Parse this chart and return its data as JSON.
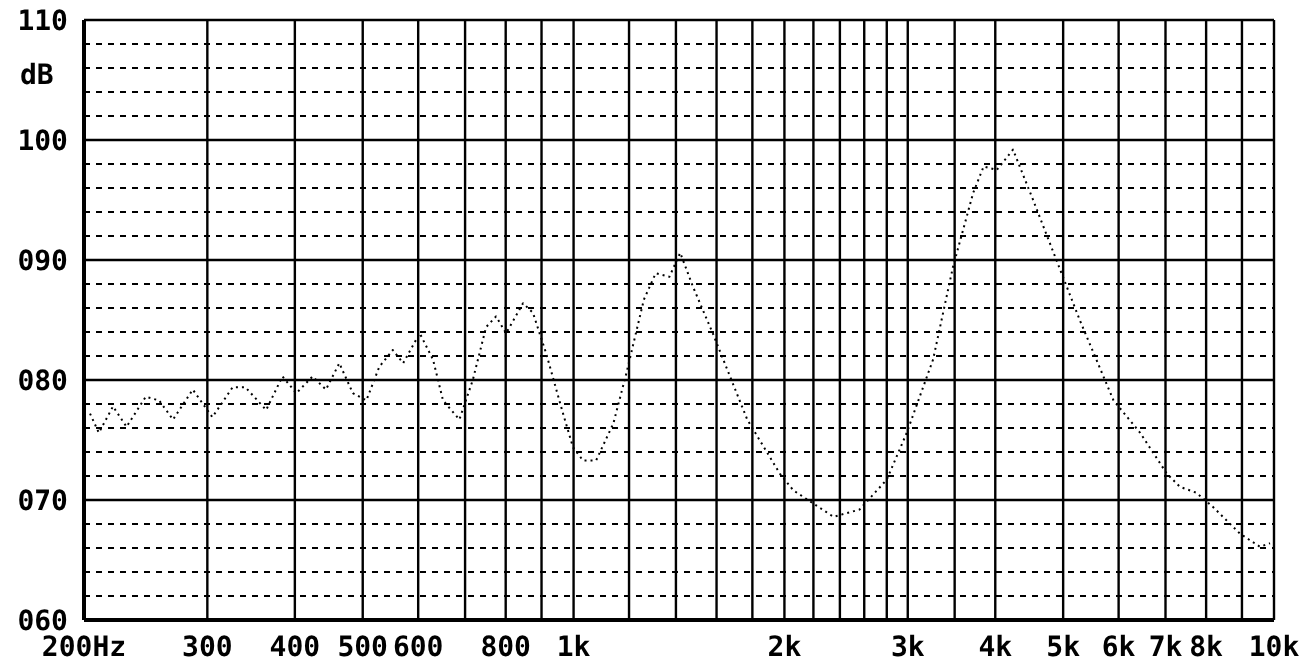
{
  "chart_data": {
    "type": "line",
    "ylabel": "dB",
    "log": "x",
    "grid": true,
    "line_style": "dotted",
    "marker": "none",
    "xlim": [
      200,
      10000
    ],
    "ylim": [
      60,
      110
    ],
    "xticks": [
      {
        "value": 200,
        "label": "200Hz"
      },
      300,
      400,
      500,
      600,
      {
        "value": 700,
        "label": null
      },
      800,
      {
        "value": 900,
        "label": null
      },
      {
        "value": 1000,
        "label": "1k"
      },
      {
        "value": 1200,
        "label": null
      },
      {
        "value": 1400,
        "label": null
      },
      {
        "value": 1600,
        "label": null
      },
      {
        "value": 1800,
        "label": null
      },
      {
        "value": 2000,
        "label": "2k"
      },
      {
        "value": 2200,
        "label": null
      },
      {
        "value": 2400,
        "label": null
      },
      {
        "value": 2600,
        "label": null
      },
      {
        "value": 2800,
        "label": null
      },
      {
        "value": 3000,
        "label": "3k"
      },
      {
        "value": 3500,
        "label": null
      },
      {
        "value": 4000,
        "label": "4k"
      },
      {
        "value": 5000,
        "label": "5k"
      },
      {
        "value": 6000,
        "label": "6k"
      },
      {
        "value": 7000,
        "label": "7k"
      },
      {
        "value": 8000,
        "label": "8k"
      },
      {
        "value": 9000,
        "label": null
      },
      {
        "value": 10000,
        "label": "10k"
      }
    ],
    "yticks": [
      {
        "value": 60,
        "label": "060"
      },
      {
        "value": 62,
        "label": null
      },
      {
        "value": 64,
        "label": null
      },
      {
        "value": 66,
        "label": null
      },
      {
        "value": 68,
        "label": null
      },
      {
        "value": 70,
        "label": "070"
      },
      {
        "value": 72,
        "label": null
      },
      {
        "value": 74,
        "label": null
      },
      {
        "value": 76,
        "label": null
      },
      {
        "value": 78,
        "label": null
      },
      {
        "value": 80,
        "label": "080"
      },
      {
        "value": 82,
        "label": null
      },
      {
        "value": 84,
        "label": null
      },
      {
        "value": 86,
        "label": null
      },
      {
        "value": 88,
        "label": null
      },
      {
        "value": 90,
        "label": "090"
      },
      {
        "value": 92,
        "label": null
      },
      {
        "value": 94,
        "label": null
      },
      {
        "value": 96,
        "label": null
      },
      {
        "value": 98,
        "label": null
      },
      100,
      {
        "value": 102,
        "label": null
      },
      {
        "value": 104,
        "label": null
      },
      {
        "value": 106,
        "label": null
      },
      {
        "value": 108,
        "label": null
      },
      110
    ],
    "x": [
      204,
      210,
      220,
      230,
      245,
      256,
      268,
      286,
      305,
      326,
      340,
      364,
      384,
      402,
      424,
      443,
      463,
      484,
      506,
      528,
      552,
      571,
      603,
      630,
      651,
      687,
      718,
      750,
      775,
      801,
      847,
      875,
      914,
      966,
      998,
      1031,
      1077,
      1140,
      1190,
      1260,
      1310,
      1370,
      1420,
      1480,
      1580,
      1770,
      1970,
      2060,
      2200,
      2350,
      2560,
      2800,
      2990,
      3260,
      3480,
      3720,
      3850,
      4020,
      4240,
      4530,
      4890,
      5280,
      5900,
      6440,
      7030,
      7340,
      7750,
      8190,
      8940,
      9550,
      9870
    ],
    "series": [
      {
        "color": "#000000",
        "values": [
          77.2,
          75.6,
          77.8,
          76.1,
          78.6,
          78.3,
          76.7,
          79.2,
          76.9,
          79.4,
          79.4,
          77.5,
          80.3,
          78.9,
          80.3,
          79.2,
          81.4,
          78.9,
          78.3,
          81.1,
          82.5,
          81.4,
          83.9,
          81.7,
          78.3,
          76.7,
          80.0,
          84.4,
          85.3,
          83.9,
          86.4,
          85.6,
          82.2,
          77.2,
          74.4,
          73.3,
          73.3,
          76.4,
          80.6,
          86.7,
          88.9,
          88.6,
          90.6,
          87.8,
          83.9,
          76.7,
          72.2,
          70.8,
          69.7,
          68.6,
          69.2,
          71.7,
          75.6,
          81.7,
          89.4,
          95.6,
          97.8,
          97.5,
          99.2,
          95.0,
          90.0,
          85.0,
          78.3,
          75.6,
          72.2,
          71.1,
          70.6,
          69.4,
          67.2,
          66.1,
          66.4
        ]
      }
    ]
  }
}
